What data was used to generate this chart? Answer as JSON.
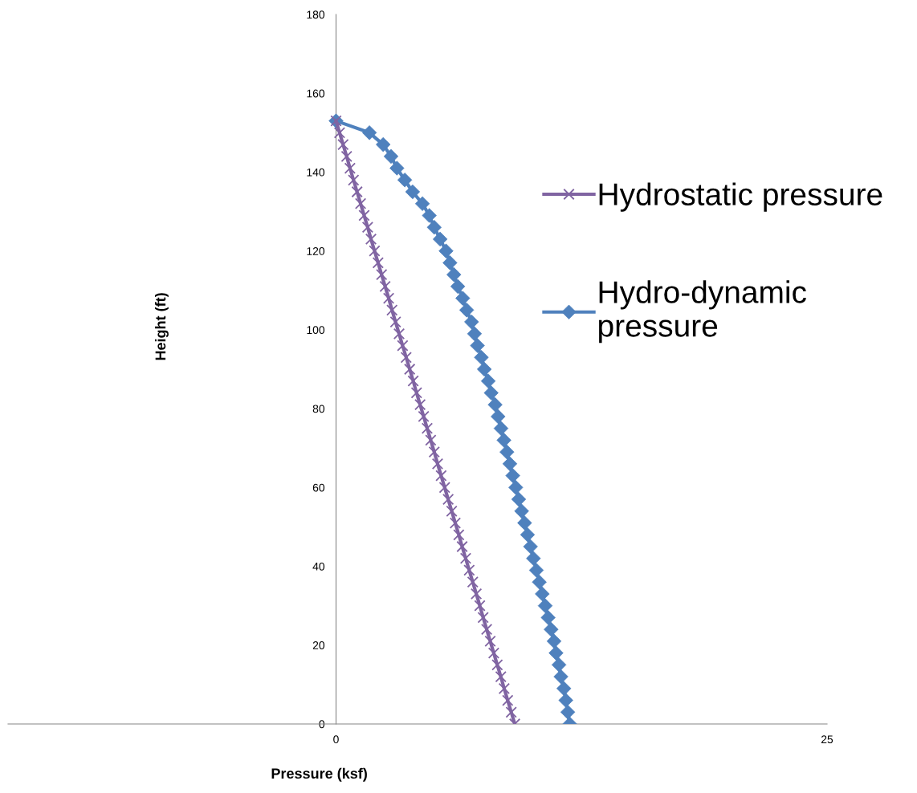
{
  "chart_data": {
    "type": "line",
    "xlabel": "Pressure (ksf)",
    "ylabel": "Height (ft)",
    "xlim": [
      -16.7,
      25
    ],
    "xticks": [
      0,
      25
    ],
    "ylim": [
      0,
      180
    ],
    "yticks": [
      0,
      20,
      40,
      60,
      80,
      100,
      120,
      140,
      160,
      180
    ],
    "grid": false,
    "legend": "right",
    "series": [
      {
        "name": "Hydrostatic pressure",
        "color": "#8064a2",
        "marker": "cross",
        "x": [
          0,
          0.18,
          0.36,
          0.54,
          0.71,
          0.89,
          1.07,
          1.25,
          1.43,
          1.61,
          1.78,
          1.96,
          2.14,
          2.32,
          2.5,
          2.68,
          2.85,
          3.03,
          3.21,
          3.39,
          3.57,
          3.75,
          3.93,
          4.1,
          4.28,
          4.46,
          4.64,
          4.82,
          5.0,
          5.17,
          5.35,
          5.53,
          5.71,
          5.89,
          6.07,
          6.25,
          6.42,
          6.6,
          6.78,
          6.96,
          7.14,
          7.32,
          7.49,
          7.67,
          7.85,
          8.03,
          8.21,
          8.39,
          8.56,
          8.74,
          8.92,
          9.1
        ],
        "values": [
          153,
          150,
          147,
          144,
          141,
          138,
          135,
          132,
          129,
          126,
          123,
          120,
          117,
          114,
          111,
          108,
          105,
          102,
          99,
          96,
          93,
          90,
          87,
          84,
          81,
          78,
          75,
          72,
          69,
          66,
          63,
          60,
          57,
          54,
          51,
          48,
          45,
          42,
          39,
          36,
          33,
          30,
          27,
          24,
          21,
          18,
          15,
          12,
          9,
          6,
          3,
          0
        ]
      },
      {
        "name": "Hydro-dynamic\npressure",
        "color": "#4f81bd",
        "marker": "diamond",
        "x": [
          0,
          1.7,
          2.4,
          2.8,
          3.1,
          3.5,
          3.9,
          4.4,
          4.75,
          5.0,
          5.3,
          5.6,
          5.8,
          6.0,
          6.2,
          6.45,
          6.65,
          6.9,
          7.05,
          7.2,
          7.4,
          7.55,
          7.75,
          7.9,
          8.1,
          8.25,
          8.4,
          8.55,
          8.7,
          8.85,
          9.0,
          9.15,
          9.3,
          9.45,
          9.6,
          9.75,
          9.9,
          10.05,
          10.2,
          10.35,
          10.5,
          10.65,
          10.8,
          10.95,
          11.1,
          11.2,
          11.35,
          11.45,
          11.6,
          11.7,
          11.8,
          11.9
        ],
        "values": [
          153,
          150,
          147,
          144,
          141,
          138,
          135,
          132,
          129,
          126,
          123,
          120,
          117,
          114,
          111,
          108,
          105,
          102,
          99,
          96,
          93,
          90,
          87,
          84,
          81,
          78,
          75,
          72,
          69,
          66,
          63,
          60,
          57,
          54,
          51,
          48,
          45,
          42,
          39,
          36,
          33,
          30,
          27,
          24,
          21,
          18,
          15,
          12,
          9,
          6,
          3,
          0
        ]
      }
    ]
  }
}
